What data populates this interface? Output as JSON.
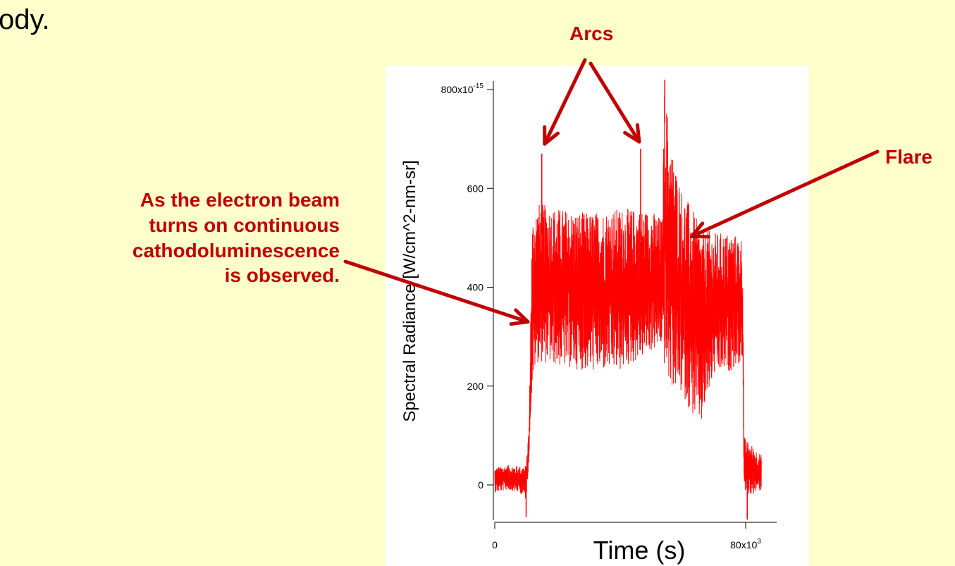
{
  "slide": {
    "body_text_fragment": "ody."
  },
  "annotations": {
    "left_lines": [
      "As the electron beam",
      "turns on continuous",
      "cathodoluminescence",
      "is observed."
    ],
    "arcs": "Arcs",
    "flare": "Flare",
    "color": "#c00000"
  },
  "chart_data": {
    "type": "line",
    "xlabel": "Time (s)",
    "ylabel": "Spectral Radiance [W/cm^2-nm-sr]",
    "xlim": [
      -1000,
      85000
    ],
    "ylim": [
      -1.1e-13,
      8.4e-13
    ],
    "x_ticks": [
      {
        "value": 0,
        "label": "0"
      },
      {
        "value": 80000,
        "label": "80x10",
        "exp": "3"
      }
    ],
    "y_ticks": [
      {
        "value": 0,
        "label": "0"
      },
      {
        "value": 2e-13,
        "label": "200"
      },
      {
        "value": 4e-13,
        "label": "400"
      },
      {
        "value": 6e-13,
        "label": "600"
      },
      {
        "value": 8e-13,
        "label": "800x10",
        "exp": "-15"
      }
    ],
    "series_color": "#ff0000",
    "series": [
      {
        "x": [
          0,
          4000,
          8000,
          10000,
          11000,
          11500,
          12000,
          13000,
          14000,
          20000,
          30000,
          40000,
          50000,
          53000,
          53500,
          54000,
          55000,
          56000,
          60000,
          63000,
          66000,
          68000,
          70000,
          75000,
          79000,
          79500,
          80000,
          82000,
          85000
        ],
        "y_low": [
          -1.5e-14,
          -1e-14,
          -1.5e-14,
          -3e-14,
          6e-14,
          1.5e-13,
          2e-13,
          2.4e-13,
          2.5e-13,
          2.4e-13,
          2.3e-13,
          2.3e-13,
          2.7e-13,
          2.8e-13,
          2.8e-13,
          2.4e-13,
          2.1e-13,
          2e-13,
          1.8e-13,
          1.4e-13,
          1.2e-13,
          1.8e-13,
          2.2e-13,
          2.3e-13,
          2.5e-13,
          -1e-14,
          -2e-14,
          -2e-14,
          -1e-14
        ],
        "y_high": [
          3.5e-14,
          4e-14,
          3.8e-14,
          4e-14,
          1.3e-13,
          3.9e-13,
          5.4e-13,
          5.6e-13,
          5.7e-13,
          5.6e-13,
          5.5e-13,
          5.6e-13,
          5.55e-13,
          5.4e-13,
          5.4e-13,
          8e-13,
          7.6e-13,
          6.9e-13,
          5.9e-13,
          5.6e-13,
          5.1e-13,
          5.15e-13,
          5.1e-13,
          5.1e-13,
          5e-13,
          1e-13,
          9e-14,
          8e-14,
          6e-14
        ]
      }
    ],
    "spikes": [
      {
        "x": 15000,
        "y": 6.7e-13
      },
      {
        "x": 46500,
        "y": 6.8e-13
      },
      {
        "x": 54200,
        "y": 8.2e-13
      }
    ],
    "dips": [
      {
        "x": 10000,
        "y": -6.5e-14
      },
      {
        "x": 80500,
        "y": -7e-14
      }
    ],
    "flare_point": {
      "x": 61000,
      "y": 5.1e-13
    },
    "onset_point": {
      "x": 11000,
      "y": 3.4e-13
    },
    "arc_points": [
      {
        "x": 15000,
        "y": 6.9e-13
      },
      {
        "x": 46500,
        "y": 6.9e-13
      }
    ]
  }
}
